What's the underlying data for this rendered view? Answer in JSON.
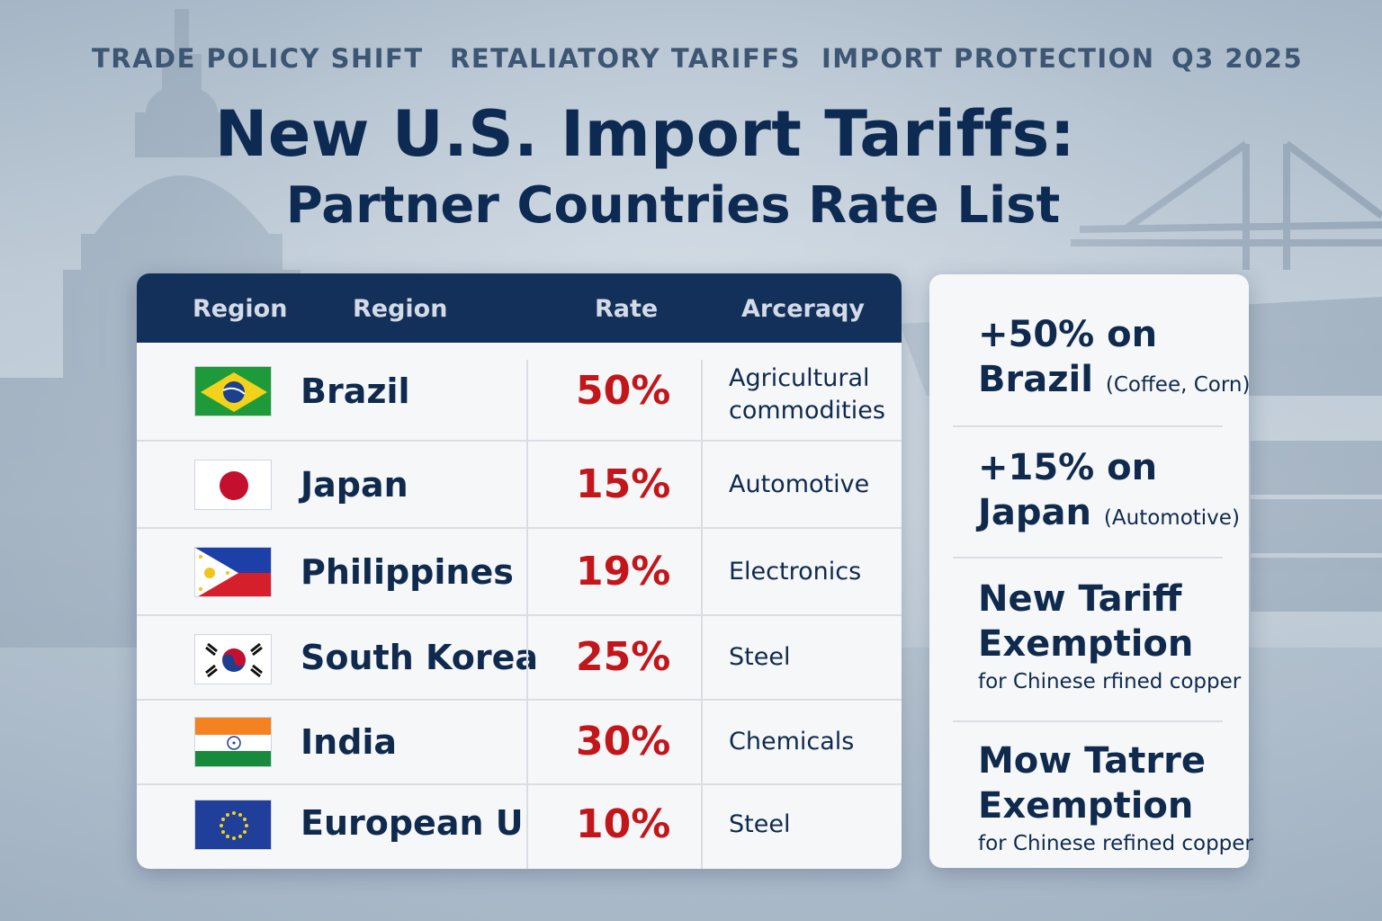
{
  "tags": [
    "TRADE POLICY SHIFT",
    "RETALIATORY TARIFFS",
    "IMPORT PROTECTION",
    "Q3 2025"
  ],
  "title": "New U.S. Import Tariffs:",
  "subtitle": "Partner Countries Rate List",
  "table": {
    "headers": [
      "Region",
      "Region",
      "Rate",
      "Arceraqy"
    ],
    "rows": [
      {
        "flag": "brazil-flag",
        "country": "Brazil",
        "rate": "50%",
        "sector_line1": "Agricultural",
        "sector_line2": "commodities"
      },
      {
        "flag": "japan-flag",
        "country": "Japan",
        "rate": "15%",
        "sector_line1": "Automotive",
        "sector_line2": ""
      },
      {
        "flag": "philippines-flag",
        "country": "Philippines",
        "rate": "19%",
        "sector_line1": "Electronics",
        "sector_line2": ""
      },
      {
        "flag": "south-korea-flag",
        "country": "South Korea",
        "rate": "25%",
        "sector_line1": "Steel",
        "sector_line2": ""
      },
      {
        "flag": "india-flag",
        "country": "India",
        "rate": "30%",
        "sector_line1": "Chemicals",
        "sector_line2": ""
      },
      {
        "flag": "eu-flag",
        "country": "European U",
        "rate": "10%",
        "sector_line1": "Steel",
        "sector_line2": ""
      }
    ]
  },
  "side_panel": {
    "items": [
      {
        "line1": "+50% on",
        "line2": "Brazil",
        "note": "(Coffee, Corn)"
      },
      {
        "line1": "+15% on",
        "line2": "Japan",
        "note": "(Automotive)"
      },
      {
        "line1": "New Tariff",
        "line2": "Exemption",
        "note": "for Chinese rfined copper"
      },
      {
        "line1": "Mow Tatrre",
        "line2": "Exemption",
        "note": "for Chinese refined copper"
      }
    ]
  },
  "colors": {
    "navy": "#12305a",
    "title_navy": "#0d2a52",
    "rate_red": "#c2161b",
    "tag_slate": "#3d5673"
  }
}
